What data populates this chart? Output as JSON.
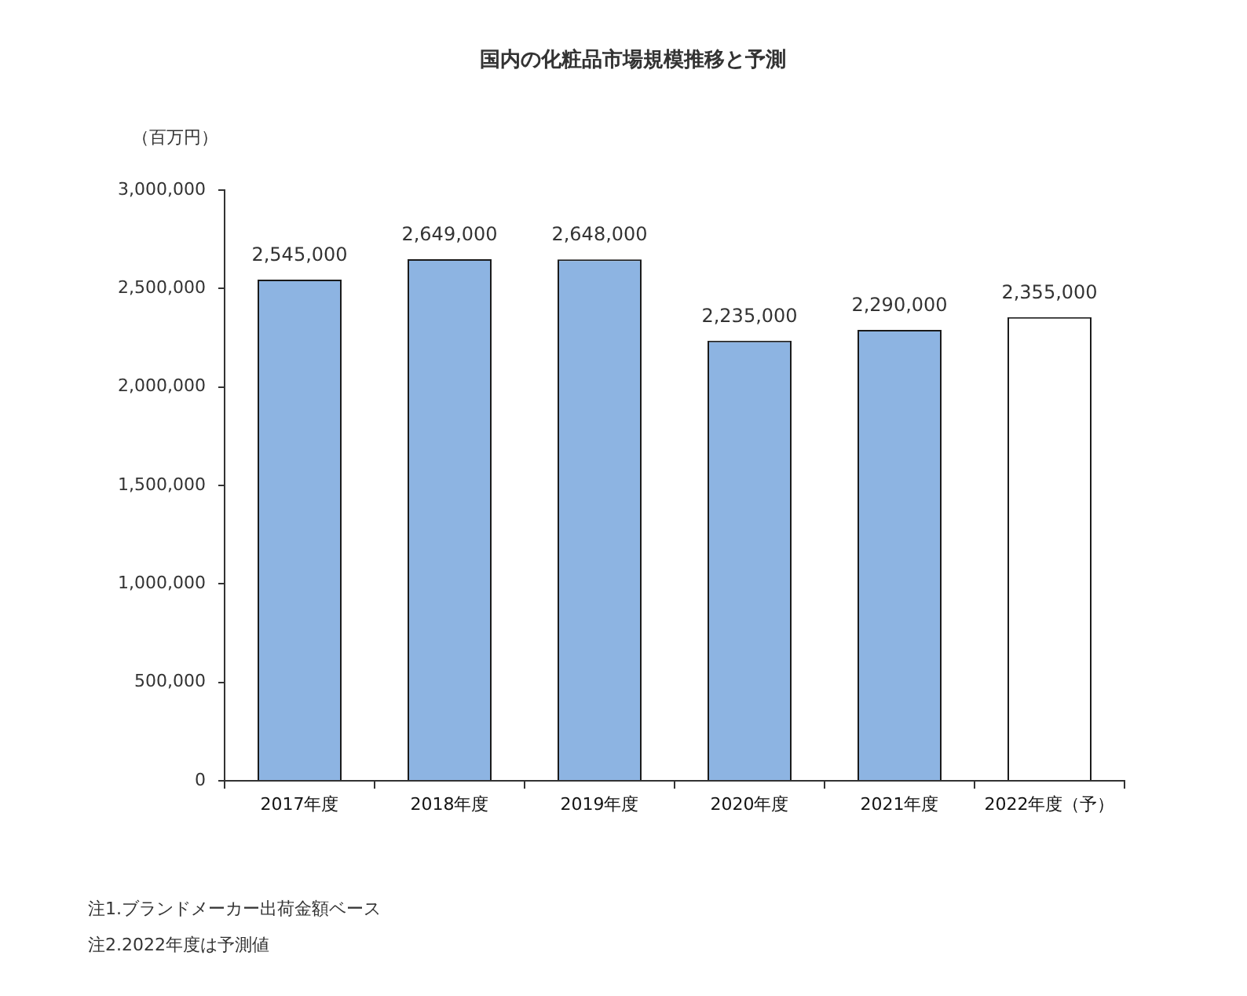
{
  "chart_data": {
    "type": "bar",
    "title": "国内の化粧品市場規模推移と予測",
    "ylabel": "（百万円）",
    "categories": [
      "2017年度",
      "2018年度",
      "2019年度",
      "2020年度",
      "2021年度",
      "2022年度（予）"
    ],
    "values": [
      2545000,
      2649000,
      2648000,
      2235000,
      2290000,
      2355000
    ],
    "value_labels": [
      "2,545,000",
      "2,649,000",
      "2,648,000",
      "2,235,000",
      "2,290,000",
      "2,355,000"
    ],
    "colors": [
      "#8db4e2",
      "#8db4e2",
      "#8db4e2",
      "#8db4e2",
      "#8db4e2",
      "#ffffff"
    ],
    "ylim": [
      0,
      3000000
    ],
    "yticks": [
      0,
      {
        "value": 500000,
        "label": "500,000"
      },
      {
        "value": 1000000,
        "label": "1,000,000"
      },
      {
        "value": 1500000,
        "label": "1,500,000"
      },
      {
        "value": 2000000,
        "label": "2,000,000"
      },
      {
        "value": 2500000,
        "label": "2,500,000"
      },
      {
        "value": 3000000,
        "label": "3,000,000"
      }
    ],
    "annotations": [
      "注1.ブランドメーカー出荷金額ベース",
      "注2.2022年度は予測値"
    ]
  }
}
